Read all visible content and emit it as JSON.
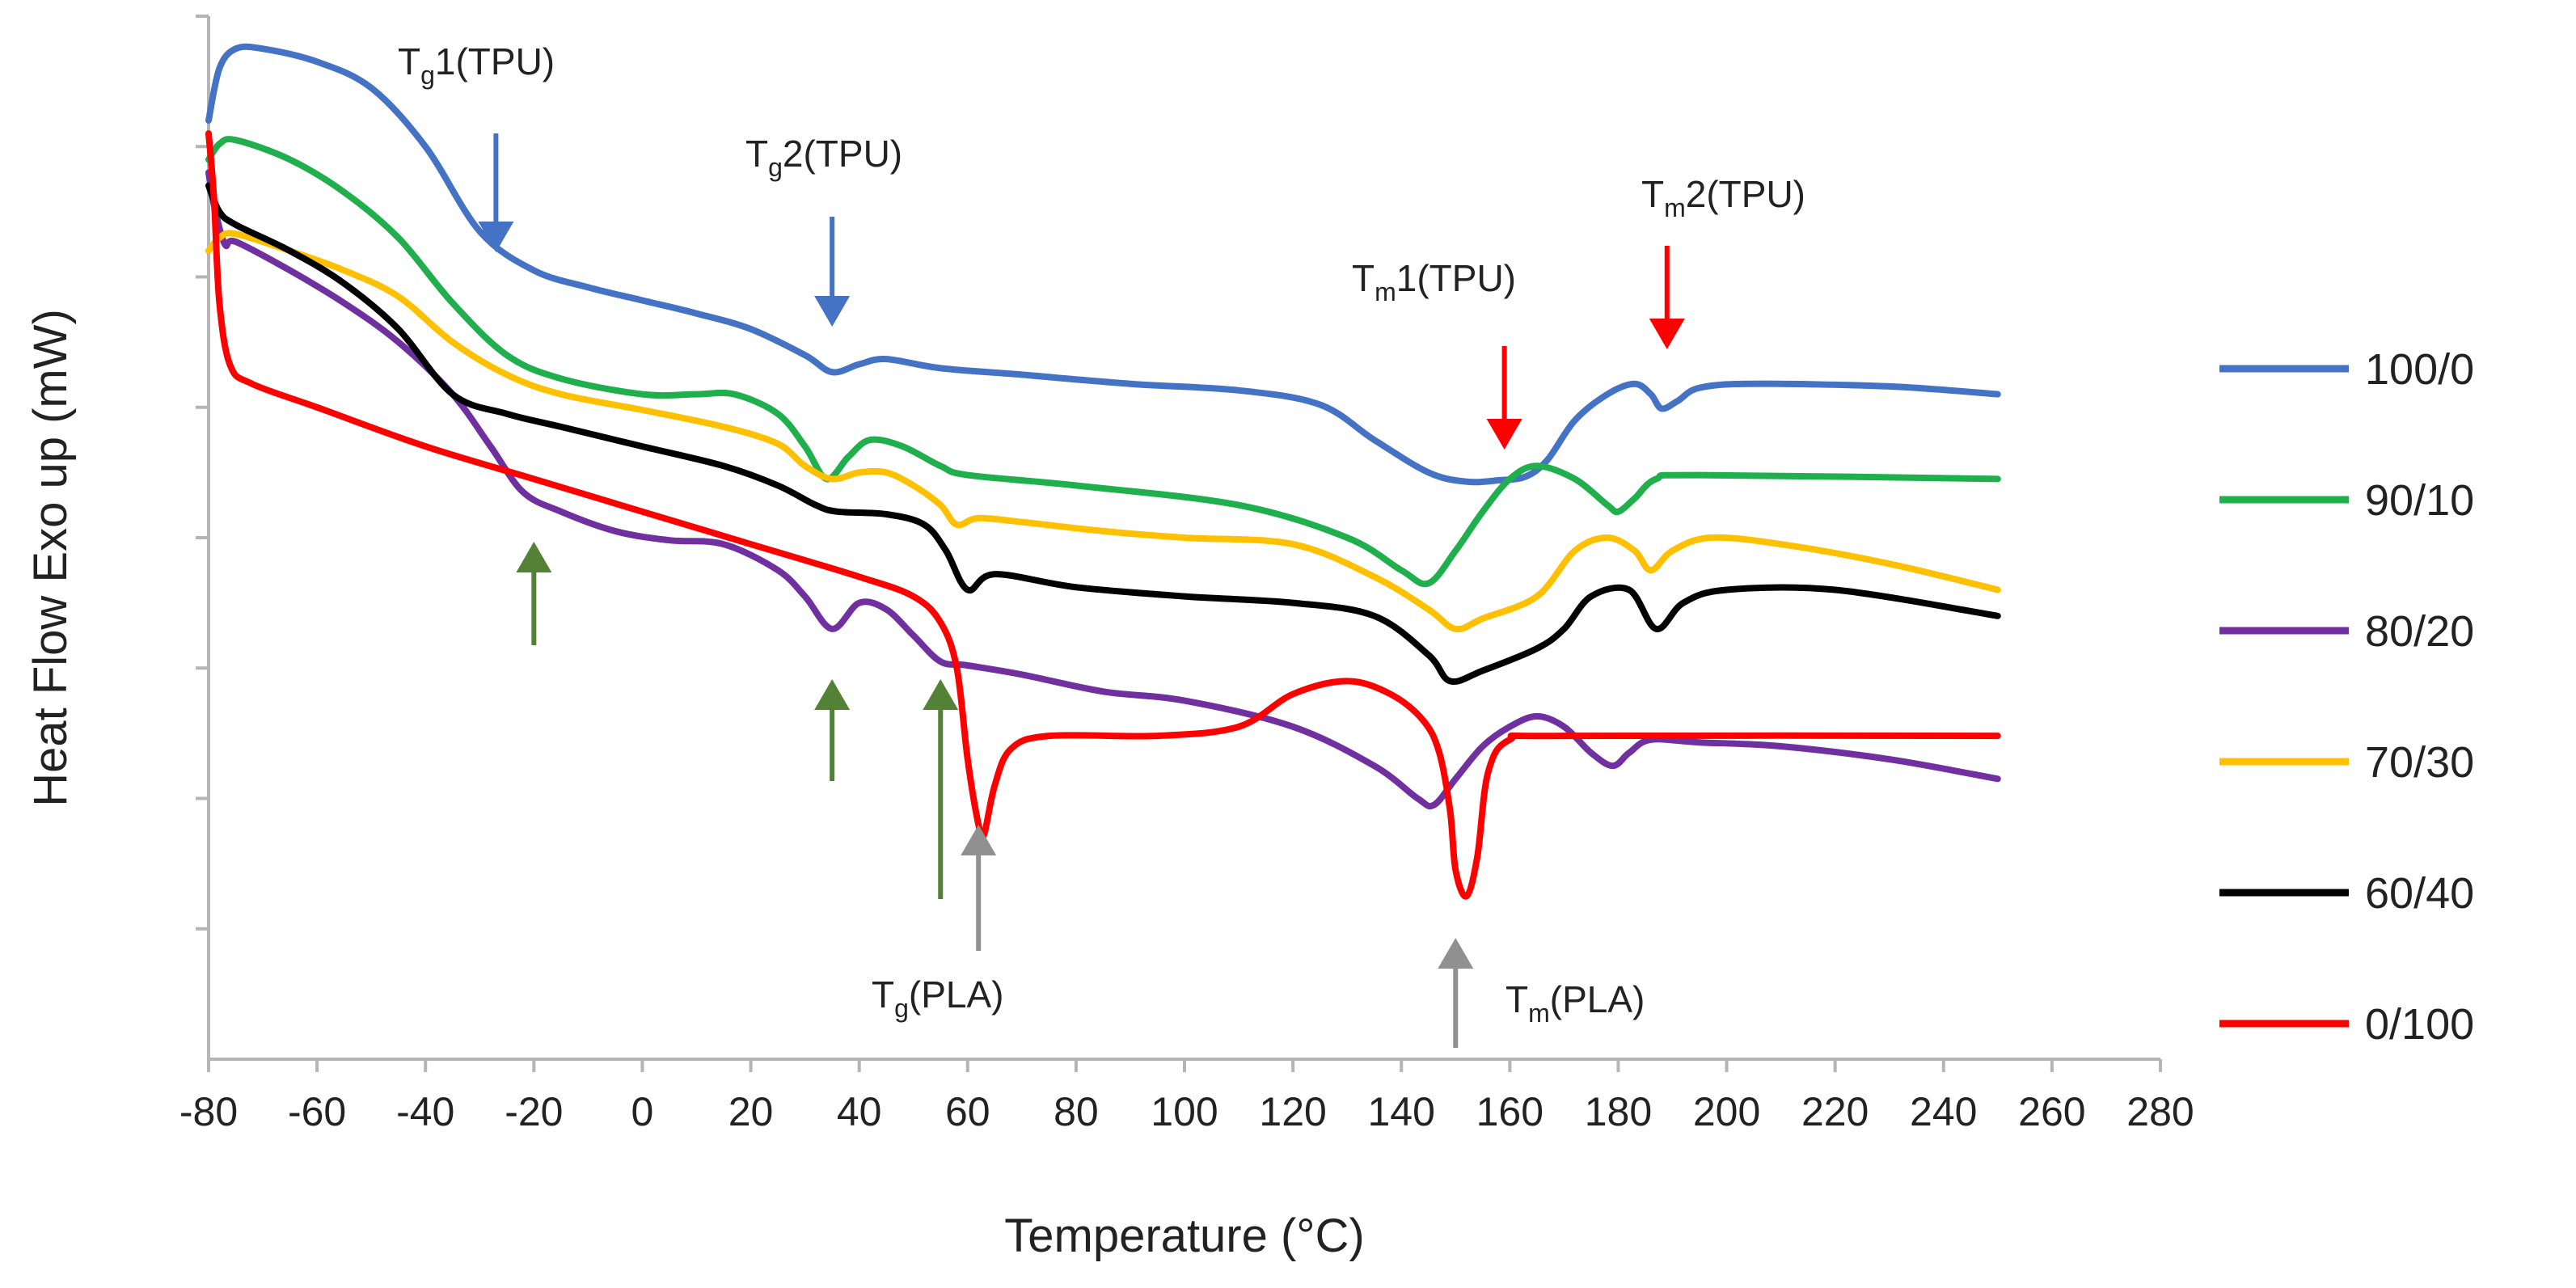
{
  "chart_data": {
    "type": "line",
    "xlabel": "Temperature (°C)",
    "ylabel": "Heat Flow Exo up (mW)",
    "xlim": [
      -80,
      280
    ],
    "xticks": [
      -80,
      -60,
      -40,
      -20,
      0,
      20,
      40,
      60,
      80,
      100,
      120,
      140,
      160,
      180,
      200,
      220,
      240,
      260,
      280
    ],
    "ylim": [
      0,
      8
    ],
    "yticks": [
      1,
      2,
      3,
      4,
      5,
      6,
      7,
      8
    ],
    "y_tick_labels_shown": false,
    "grid": false,
    "legend_position": "right",
    "series": [
      {
        "name": "100/0",
        "color": "#4472C4",
        "points": [
          [
            -80,
            7.2
          ],
          [
            -78,
            7.6
          ],
          [
            -75,
            7.75
          ],
          [
            -70,
            7.75
          ],
          [
            -60,
            7.65
          ],
          [
            -50,
            7.45
          ],
          [
            -40,
            7.0
          ],
          [
            -30,
            6.35
          ],
          [
            -20,
            6.05
          ],
          [
            -10,
            5.92
          ],
          [
            0,
            5.82
          ],
          [
            10,
            5.72
          ],
          [
            20,
            5.6
          ],
          [
            30,
            5.4
          ],
          [
            35,
            5.27
          ],
          [
            40,
            5.33
          ],
          [
            45,
            5.37
          ],
          [
            55,
            5.3
          ],
          [
            70,
            5.25
          ],
          [
            90,
            5.18
          ],
          [
            110,
            5.13
          ],
          [
            125,
            5.02
          ],
          [
            135,
            4.75
          ],
          [
            145,
            4.5
          ],
          [
            152,
            4.43
          ],
          [
            158,
            4.44
          ],
          [
            163,
            4.47
          ],
          [
            167,
            4.6
          ],
          [
            172,
            4.9
          ],
          [
            178,
            5.1
          ],
          [
            183,
            5.18
          ],
          [
            186,
            5.1
          ],
          [
            188,
            4.99
          ],
          [
            191,
            5.05
          ],
          [
            195,
            5.15
          ],
          [
            205,
            5.18
          ],
          [
            230,
            5.16
          ],
          [
            250,
            5.1
          ]
        ]
      },
      {
        "name": "90/10",
        "color": "#1FAF4C",
        "points": [
          [
            -80,
            6.9
          ],
          [
            -78,
            7.02
          ],
          [
            -75,
            7.05
          ],
          [
            -65,
            6.9
          ],
          [
            -55,
            6.65
          ],
          [
            -45,
            6.3
          ],
          [
            -35,
            5.8
          ],
          [
            -25,
            5.4
          ],
          [
            -15,
            5.22
          ],
          [
            0,
            5.1
          ],
          [
            10,
            5.1
          ],
          [
            17,
            5.1
          ],
          [
            25,
            4.95
          ],
          [
            30,
            4.7
          ],
          [
            34,
            4.45
          ],
          [
            38,
            4.62
          ],
          [
            42,
            4.75
          ],
          [
            48,
            4.7
          ],
          [
            55,
            4.55
          ],
          [
            60,
            4.48
          ],
          [
            80,
            4.4
          ],
          [
            110,
            4.25
          ],
          [
            130,
            4.0
          ],
          [
            140,
            3.75
          ],
          [
            145,
            3.65
          ],
          [
            150,
            3.9
          ],
          [
            155,
            4.2
          ],
          [
            160,
            4.45
          ],
          [
            165,
            4.55
          ],
          [
            172,
            4.45
          ],
          [
            178,
            4.25
          ],
          [
            180,
            4.2
          ],
          [
            183,
            4.3
          ],
          [
            187,
            4.45
          ],
          [
            195,
            4.48
          ],
          [
            250,
            4.45
          ]
        ]
      },
      {
        "name": "80/20",
        "color": "#7030A0",
        "points": [
          [
            -80,
            6.8
          ],
          [
            -79,
            6.55
          ],
          [
            -77,
            6.25
          ],
          [
            -75,
            6.27
          ],
          [
            -65,
            6.05
          ],
          [
            -55,
            5.8
          ],
          [
            -45,
            5.5
          ],
          [
            -35,
            5.1
          ],
          [
            -28,
            4.7
          ],
          [
            -22,
            4.35
          ],
          [
            -15,
            4.2
          ],
          [
            -5,
            4.05
          ],
          [
            5,
            3.98
          ],
          [
            15,
            3.95
          ],
          [
            25,
            3.75
          ],
          [
            30,
            3.55
          ],
          [
            35,
            3.3
          ],
          [
            40,
            3.5
          ],
          [
            45,
            3.45
          ],
          [
            50,
            3.25
          ],
          [
            55,
            3.05
          ],
          [
            60,
            3.02
          ],
          [
            70,
            2.95
          ],
          [
            85,
            2.82
          ],
          [
            100,
            2.75
          ],
          [
            120,
            2.55
          ],
          [
            135,
            2.25
          ],
          [
            143,
            2.0
          ],
          [
            146,
            1.95
          ],
          [
            150,
            2.15
          ],
          [
            155,
            2.4
          ],
          [
            160,
            2.55
          ],
          [
            165,
            2.63
          ],
          [
            170,
            2.55
          ],
          [
            175,
            2.35
          ],
          [
            179,
            2.25
          ],
          [
            182,
            2.35
          ],
          [
            186,
            2.45
          ],
          [
            195,
            2.43
          ],
          [
            210,
            2.4
          ],
          [
            230,
            2.3
          ],
          [
            250,
            2.15
          ]
        ]
      },
      {
        "name": "70/30",
        "color": "#FFC000",
        "points": [
          [
            -80,
            6.2
          ],
          [
            -78,
            6.3
          ],
          [
            -75,
            6.33
          ],
          [
            -65,
            6.2
          ],
          [
            -55,
            6.05
          ],
          [
            -45,
            5.85
          ],
          [
            -35,
            5.5
          ],
          [
            -25,
            5.25
          ],
          [
            -15,
            5.1
          ],
          [
            0,
            4.98
          ],
          [
            15,
            4.85
          ],
          [
            25,
            4.72
          ],
          [
            30,
            4.55
          ],
          [
            35,
            4.45
          ],
          [
            40,
            4.5
          ],
          [
            45,
            4.5
          ],
          [
            50,
            4.4
          ],
          [
            55,
            4.25
          ],
          [
            58,
            4.1
          ],
          [
            62,
            4.15
          ],
          [
            70,
            4.12
          ],
          [
            85,
            4.05
          ],
          [
            100,
            4.0
          ],
          [
            120,
            3.95
          ],
          [
            135,
            3.7
          ],
          [
            145,
            3.45
          ],
          [
            150,
            3.3
          ],
          [
            155,
            3.38
          ],
          [
            165,
            3.55
          ],
          [
            172,
            3.9
          ],
          [
            178,
            4.0
          ],
          [
            183,
            3.9
          ],
          [
            186,
            3.75
          ],
          [
            190,
            3.9
          ],
          [
            197,
            4.0
          ],
          [
            210,
            3.95
          ],
          [
            230,
            3.8
          ],
          [
            250,
            3.6
          ]
        ]
      },
      {
        "name": "60/40",
        "color": "#000000",
        "points": [
          [
            -80,
            6.7
          ],
          [
            -78,
            6.5
          ],
          [
            -75,
            6.4
          ],
          [
            -65,
            6.2
          ],
          [
            -55,
            5.95
          ],
          [
            -45,
            5.6
          ],
          [
            -35,
            5.1
          ],
          [
            -25,
            4.95
          ],
          [
            -15,
            4.85
          ],
          [
            0,
            4.7
          ],
          [
            15,
            4.55
          ],
          [
            25,
            4.4
          ],
          [
            32,
            4.25
          ],
          [
            36,
            4.2
          ],
          [
            45,
            4.18
          ],
          [
            52,
            4.1
          ],
          [
            56,
            3.9
          ],
          [
            60,
            3.6
          ],
          [
            65,
            3.72
          ],
          [
            80,
            3.62
          ],
          [
            100,
            3.55
          ],
          [
            120,
            3.5
          ],
          [
            135,
            3.4
          ],
          [
            145,
            3.1
          ],
          [
            149,
            2.9
          ],
          [
            155,
            2.98
          ],
          [
            165,
            3.15
          ],
          [
            170,
            3.3
          ],
          [
            175,
            3.55
          ],
          [
            182,
            3.6
          ],
          [
            187,
            3.3
          ],
          [
            192,
            3.5
          ],
          [
            200,
            3.6
          ],
          [
            220,
            3.6
          ],
          [
            250,
            3.4
          ]
        ]
      },
      {
        "name": "0/100",
        "color": "#FF0000",
        "points": [
          [
            -80,
            7.1
          ],
          [
            -79,
            6.6
          ],
          [
            -78,
            5.8
          ],
          [
            -76,
            5.32
          ],
          [
            -72,
            5.18
          ],
          [
            -60,
            5.0
          ],
          [
            -40,
            4.7
          ],
          [
            -20,
            4.45
          ],
          [
            0,
            4.2
          ],
          [
            20,
            3.95
          ],
          [
            40,
            3.7
          ],
          [
            50,
            3.55
          ],
          [
            55,
            3.35
          ],
          [
            58,
            3.0
          ],
          [
            60,
            2.3
          ],
          [
            62,
            1.8
          ],
          [
            63,
            1.72
          ],
          [
            65,
            2.1
          ],
          [
            68,
            2.38
          ],
          [
            75,
            2.48
          ],
          [
            95,
            2.48
          ],
          [
            110,
            2.55
          ],
          [
            120,
            2.8
          ],
          [
            130,
            2.9
          ],
          [
            138,
            2.8
          ],
          [
            144,
            2.6
          ],
          [
            147,
            2.35
          ],
          [
            149,
            1.9
          ],
          [
            150,
            1.45
          ],
          [
            152,
            1.25
          ],
          [
            154,
            1.55
          ],
          [
            156,
            2.2
          ],
          [
            160,
            2.45
          ],
          [
            170,
            2.48
          ],
          [
            250,
            2.48
          ]
        ]
      }
    ],
    "annotations": [
      {
        "id": "tg1_tpu",
        "main": "T",
        "sub": "g",
        "rest": "1(TPU)",
        "arrow_color": "#4472C4",
        "x": -27
      },
      {
        "id": "tg2_tpu",
        "main": "T",
        "sub": "g",
        "rest": "2(TPU)",
        "arrow_color": "#4472C4",
        "x": 35
      },
      {
        "id": "tm1_tpu",
        "main": "T",
        "sub": "m",
        "rest": "1(TPU)",
        "arrow_color": "#FF0000",
        "x": 159
      },
      {
        "id": "tm2_tpu",
        "main": "T",
        "sub": "m",
        "rest": "2(TPU)",
        "arrow_color": "#FF0000",
        "x": 189
      },
      {
        "id": "tg_pla",
        "main": "T",
        "sub": "g",
        "rest": "(PLA)",
        "arrow_color": "#909090",
        "x": 62
      },
      {
        "id": "tm_pla",
        "main": "T",
        "sub": "m",
        "rest": "(PLA)",
        "arrow_color": "#909090",
        "x": 150
      }
    ],
    "unlabeled_arrows": [
      {
        "color": "#538135",
        "x": -20
      },
      {
        "color": "#538135",
        "x": 35
      },
      {
        "color": "#538135",
        "x": 55
      }
    ]
  }
}
